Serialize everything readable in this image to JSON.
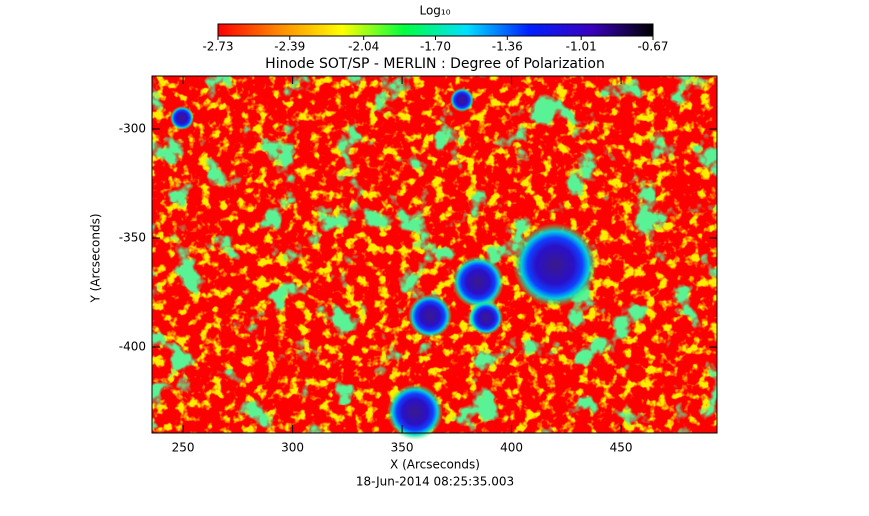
{
  "chart_data": {
    "type": "heatmap",
    "title": "Hinode SOT/SP - MERLIN : Degree of Polarization",
    "xlabel": "X (Arcseconds)",
    "ylabel": "Y (Arcseconds)",
    "footnote": "18-Jun-2014 08:25:35.003",
    "xlim": [
      235.8,
      493.8
    ],
    "xticks": [
      250,
      300,
      350,
      400,
      450
    ],
    "ylim": [
      -439.4,
      -275.7
    ],
    "yticks": [
      -300,
      -350,
      -400
    ],
    "colorbar": {
      "label": "Log₁₀",
      "lim": [
        -2.73,
        -0.67
      ],
      "ticks": [
        -2.73,
        -2.39,
        -2.04,
        {
          "value": -1.7,
          "label": "-1.70"
        },
        -1.36,
        -1.01,
        -0.67
      ],
      "colormap": [
        "#ff0000",
        "#ff8c00",
        "#ffff00",
        "#00ff40",
        "#00e0ff",
        "#0020ff",
        "#3a00c0",
        "#000000"
      ]
    }
  }
}
